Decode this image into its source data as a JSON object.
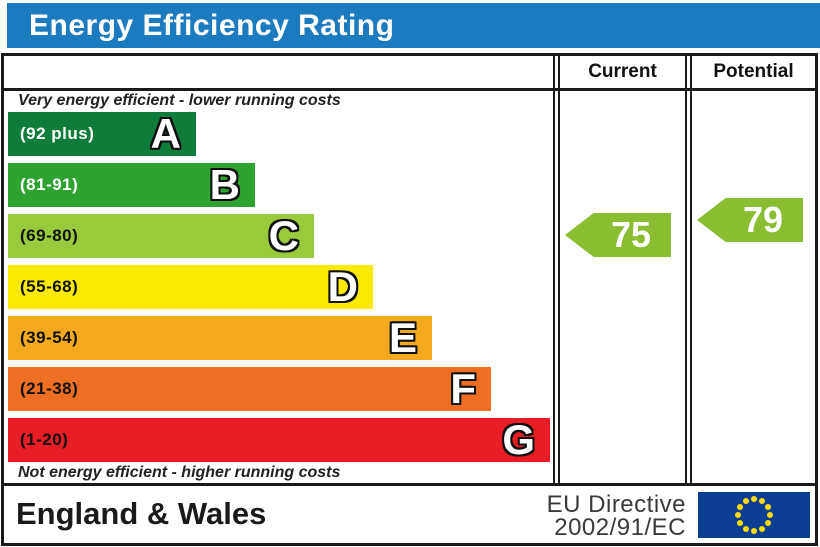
{
  "title": "Energy Efficiency Rating",
  "columns": {
    "current": "Current",
    "potential": "Potential"
  },
  "top_note": "Very energy efficient - lower running costs",
  "bottom_note": "Not energy efficient - higher running costs",
  "bands": [
    {
      "letter": "A",
      "range": "(92 plus)",
      "color": "#107c3c",
      "range_color": "#ffffff"
    },
    {
      "letter": "B",
      "range": "(81-91)",
      "color": "#2ea32f",
      "range_color": "#ffffff"
    },
    {
      "letter": "C",
      "range": "(69-80)",
      "color": "#98ca3c",
      "range_color": "#111111"
    },
    {
      "letter": "D",
      "range": "(55-68)",
      "color": "#fbeb04",
      "range_color": "#111111"
    },
    {
      "letter": "E",
      "range": "(39-54)",
      "color": "#f2a91d",
      "range_color": "#111111"
    },
    {
      "letter": "F",
      "range": "(21-38)",
      "color": "#ee6e23",
      "range_color": "#111111"
    },
    {
      "letter": "G",
      "range": "(1-20)",
      "color": "#e91e25",
      "range_color": "#111111"
    }
  ],
  "ratings": {
    "current": {
      "value": "75",
      "band": "C"
    },
    "potential": {
      "value": "79",
      "band": "C"
    },
    "arrow_color": "#8abd31"
  },
  "footer": {
    "region": "England & Wales",
    "directive_line1": "EU Directive",
    "directive_line2": "2002/91/EC"
  },
  "colors": {
    "title_bar": "#1b7bbe",
    "eu_flag_blue": "#0c3e94",
    "eu_flag_star": "#ffdd00",
    "border": "#1a1a1a"
  },
  "chart_data": {
    "type": "bar",
    "title": "Energy Efficiency Rating",
    "categories": [
      "A",
      "B",
      "C",
      "D",
      "E",
      "F",
      "G"
    ],
    "band_ranges": [
      "92 plus",
      "81-91",
      "69-80",
      "55-68",
      "39-54",
      "21-38",
      "1-20"
    ],
    "band_colors": [
      "#107c3c",
      "#2ea32f",
      "#98ca3c",
      "#fbeb04",
      "#f2a91d",
      "#ee6e23",
      "#e91e25"
    ],
    "bar_lengths_relative": [
      1,
      2,
      3,
      4,
      5,
      6,
      7
    ],
    "series": [
      {
        "name": "Current",
        "values": [
          75
        ],
        "band": "C"
      },
      {
        "name": "Potential",
        "values": [
          79
        ],
        "band": "C"
      }
    ],
    "value_scale": [
      1,
      100
    ],
    "annotations": [
      "Very energy efficient - lower running costs",
      "Not energy efficient - higher running costs"
    ],
    "footer_text": [
      "England & Wales",
      "EU Directive 2002/91/EC"
    ],
    "legend_position": "top-right-columns",
    "grid": false
  }
}
